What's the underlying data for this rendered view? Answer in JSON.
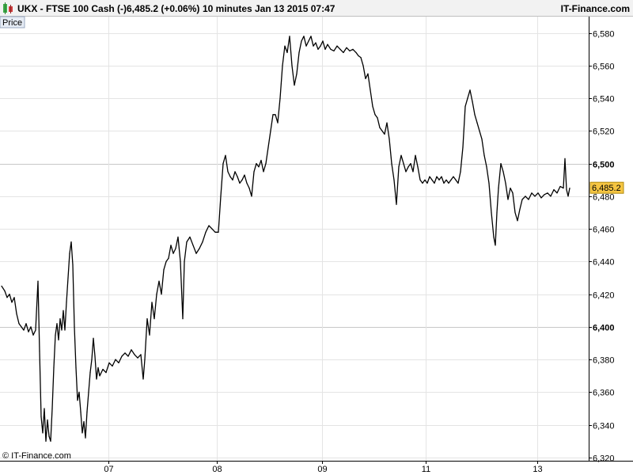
{
  "header": {
    "instrument": "UKX - FTSE 100 Cash (-)",
    "price_change": "6,485.2 (+0.06%)",
    "interval": "10 minutes",
    "datetime": "Jan 13 2015 07:47",
    "brand": "IT-Finance.com"
  },
  "panel_label": "Price",
  "watermark": "© IT-Finance.com",
  "last_price_label": "6,485.2",
  "colors": {
    "line": "#000000",
    "last_price_bg": "#f5c542",
    "icon_green": "#3fae49",
    "icon_red": "#d23c3c"
  },
  "chart_data": {
    "type": "line",
    "title": "UKX - FTSE 100 Cash (-)",
    "xlabel": "",
    "ylabel": "",
    "ylim": [
      6318,
      6590
    ],
    "grid": true,
    "x_ticks": [
      {
        "label": "07",
        "t": 137
      },
      {
        "label": "08",
        "t": 274
      },
      {
        "label": "09",
        "t": 407
      },
      {
        "label": "11",
        "t": 538
      },
      {
        "label": "13",
        "t": 679
      }
    ],
    "y_ticks": [
      {
        "label": "6,320",
        "v": 6320,
        "bold": false
      },
      {
        "label": "6,340",
        "v": 6340,
        "bold": false
      },
      {
        "label": "6,360",
        "v": 6360,
        "bold": false
      },
      {
        "label": "6,380",
        "v": 6380,
        "bold": false
      },
      {
        "label": "6,400",
        "v": 6400,
        "bold": true
      },
      {
        "label": "6,420",
        "v": 6420,
        "bold": false
      },
      {
        "label": "6,440",
        "v": 6440,
        "bold": false
      },
      {
        "label": "6,460",
        "v": 6460,
        "bold": false
      },
      {
        "label": "6,480",
        "v": 6480,
        "bold": false
      },
      {
        "label": "6,500",
        "v": 6500,
        "bold": true
      },
      {
        "label": "6,520",
        "v": 6520,
        "bold": false
      },
      {
        "label": "6,540",
        "v": 6540,
        "bold": false
      },
      {
        "label": "6,560",
        "v": 6560,
        "bold": false
      },
      {
        "label": "6,580",
        "v": 6580,
        "bold": false
      }
    ],
    "last_value": 6485.2,
    "series": [
      {
        "values": [
          [
            2,
            6425
          ],
          [
            6,
            6422
          ],
          [
            9,
            6418
          ],
          [
            12,
            6420
          ],
          [
            15,
            6415
          ],
          [
            18,
            6418
          ],
          [
            21,
            6408
          ],
          [
            24,
            6402
          ],
          [
            27,
            6400
          ],
          [
            30,
            6398
          ],
          [
            33,
            6402
          ],
          [
            36,
            6397
          ],
          [
            39,
            6400
          ],
          [
            42,
            6395
          ],
          [
            45,
            6398
          ],
          [
            48,
            6428
          ],
          [
            50,
            6385
          ],
          [
            52,
            6345
          ],
          [
            54,
            6335
          ],
          [
            56,
            6350
          ],
          [
            58,
            6330
          ],
          [
            60,
            6343
          ],
          [
            62,
            6333
          ],
          [
            64,
            6330
          ],
          [
            66,
            6350
          ],
          [
            68,
            6375
          ],
          [
            70,
            6395
          ],
          [
            72,
            6402
          ],
          [
            74,
            6392
          ],
          [
            76,
            6405
          ],
          [
            78,
            6398
          ],
          [
            80,
            6410
          ],
          [
            82,
            6398
          ],
          [
            84,
            6415
          ],
          [
            86,
            6430
          ],
          [
            88,
            6445
          ],
          [
            90,
            6452
          ],
          [
            92,
            6438
          ],
          [
            94,
            6400
          ],
          [
            96,
            6375
          ],
          [
            98,
            6355
          ],
          [
            100,
            6360
          ],
          [
            102,
            6348
          ],
          [
            104,
            6335
          ],
          [
            106,
            6342
          ],
          [
            108,
            6332
          ],
          [
            110,
            6348
          ],
          [
            112,
            6360
          ],
          [
            114,
            6372
          ],
          [
            116,
            6380
          ],
          [
            118,
            6393
          ],
          [
            120,
            6382
          ],
          [
            122,
            6368
          ],
          [
            124,
            6375
          ],
          [
            126,
            6370
          ],
          [
            130,
            6374
          ],
          [
            134,
            6372
          ],
          [
            138,
            6378
          ],
          [
            142,
            6376
          ],
          [
            146,
            6380
          ],
          [
            150,
            6378
          ],
          [
            154,
            6382
          ],
          [
            158,
            6384
          ],
          [
            162,
            6382
          ],
          [
            166,
            6386
          ],
          [
            170,
            6383
          ],
          [
            174,
            6381
          ],
          [
            178,
            6383
          ],
          [
            181,
            6368
          ],
          [
            183,
            6380
          ],
          [
            186,
            6405
          ],
          [
            189,
            6395
          ],
          [
            192,
            6415
          ],
          [
            195,
            6405
          ],
          [
            198,
            6420
          ],
          [
            201,
            6428
          ],
          [
            204,
            6420
          ],
          [
            207,
            6435
          ],
          [
            210,
            6440
          ],
          [
            213,
            6442
          ],
          [
            216,
            6450
          ],
          [
            219,
            6445
          ],
          [
            222,
            6448
          ],
          [
            225,
            6455
          ],
          [
            228,
            6440
          ],
          [
            231,
            6405
          ],
          [
            233,
            6440
          ],
          [
            236,
            6452
          ],
          [
            240,
            6455
          ],
          [
            244,
            6450
          ],
          [
            248,
            6445
          ],
          [
            252,
            6448
          ],
          [
            256,
            6452
          ],
          [
            260,
            6458
          ],
          [
            264,
            6462
          ],
          [
            268,
            6460
          ],
          [
            272,
            6458
          ],
          [
            276,
            6458
          ],
          [
            279,
            6480
          ],
          [
            282,
            6500
          ],
          [
            285,
            6505
          ],
          [
            288,
            6495
          ],
          [
            291,
            6492
          ],
          [
            294,
            6490
          ],
          [
            297,
            6495
          ],
          [
            300,
            6492
          ],
          [
            303,
            6488
          ],
          [
            306,
            6490
          ],
          [
            309,
            6493
          ],
          [
            312,
            6488
          ],
          [
            315,
            6485
          ],
          [
            318,
            6480
          ],
          [
            321,
            6495
          ],
          [
            324,
            6500
          ],
          [
            327,
            6498
          ],
          [
            330,
            6502
          ],
          [
            333,
            6495
          ],
          [
            336,
            6500
          ],
          [
            339,
            6510
          ],
          [
            342,
            6520
          ],
          [
            345,
            6530
          ],
          [
            348,
            6530
          ],
          [
            351,
            6525
          ],
          [
            354,
            6540
          ],
          [
            357,
            6560
          ],
          [
            360,
            6572
          ],
          [
            363,
            6568
          ],
          [
            366,
            6578
          ],
          [
            369,
            6560
          ],
          [
            372,
            6548
          ],
          [
            375,
            6555
          ],
          [
            378,
            6568
          ],
          [
            381,
            6575
          ],
          [
            384,
            6578
          ],
          [
            387,
            6572
          ],
          [
            390,
            6575
          ],
          [
            393,
            6578
          ],
          [
            396,
            6572
          ],
          [
            399,
            6574
          ],
          [
            402,
            6570
          ],
          [
            405,
            6572
          ],
          [
            408,
            6575
          ],
          [
            411,
            6570
          ],
          [
            414,
            6573
          ],
          [
            418,
            6570
          ],
          [
            422,
            6569
          ],
          [
            426,
            6572
          ],
          [
            430,
            6570
          ],
          [
            434,
            6568
          ],
          [
            438,
            6571
          ],
          [
            442,
            6569
          ],
          [
            446,
            6570
          ],
          [
            450,
            6568
          ],
          [
            453,
            6566
          ],
          [
            456,
            6565
          ],
          [
            459,
            6560
          ],
          [
            462,
            6552
          ],
          [
            465,
            6555
          ],
          [
            468,
            6545
          ],
          [
            471,
            6535
          ],
          [
            474,
            6530
          ],
          [
            477,
            6528
          ],
          [
            480,
            6522
          ],
          [
            483,
            6520
          ],
          [
            486,
            6518
          ],
          [
            489,
            6525
          ],
          [
            492,
            6515
          ],
          [
            495,
            6500
          ],
          [
            498,
            6490
          ],
          [
            501,
            6475
          ],
          [
            504,
            6498
          ],
          [
            507,
            6505
          ],
          [
            510,
            6500
          ],
          [
            513,
            6495
          ],
          [
            516,
            6498
          ],
          [
            519,
            6500
          ],
          [
            522,
            6495
          ],
          [
            525,
            6505
          ],
          [
            528,
            6498
          ],
          [
            531,
            6490
          ],
          [
            534,
            6488
          ],
          [
            537,
            6490
          ],
          [
            540,
            6488
          ],
          [
            543,
            6492
          ],
          [
            546,
            6490
          ],
          [
            549,
            6488
          ],
          [
            552,
            6492
          ],
          [
            555,
            6490
          ],
          [
            558,
            6492
          ],
          [
            561,
            6488
          ],
          [
            564,
            6490
          ],
          [
            567,
            6488
          ],
          [
            570,
            6490
          ],
          [
            573,
            6492
          ],
          [
            576,
            6490
          ],
          [
            579,
            6488
          ],
          [
            582,
            6495
          ],
          [
            585,
            6510
          ],
          [
            588,
            6535
          ],
          [
            591,
            6540
          ],
          [
            594,
            6545
          ],
          [
            597,
            6538
          ],
          [
            600,
            6530
          ],
          [
            603,
            6525
          ],
          [
            606,
            6520
          ],
          [
            609,
            6515
          ],
          [
            612,
            6505
          ],
          [
            615,
            6498
          ],
          [
            618,
            6488
          ],
          [
            621,
            6470
          ],
          [
            624,
            6455
          ],
          [
            626,
            6450
          ],
          [
            628,
            6470
          ],
          [
            630,
            6485
          ],
          [
            633,
            6500
          ],
          [
            636,
            6495
          ],
          [
            639,
            6488
          ],
          [
            642,
            6478
          ],
          [
            645,
            6485
          ],
          [
            648,
            6482
          ],
          [
            651,
            6470
          ],
          [
            654,
            6465
          ],
          [
            657,
            6472
          ],
          [
            660,
            6478
          ],
          [
            664,
            6480
          ],
          [
            668,
            6478
          ],
          [
            672,
            6482
          ],
          [
            676,
            6480
          ],
          [
            680,
            6482
          ],
          [
            684,
            6479
          ],
          [
            688,
            6481
          ],
          [
            692,
            6482
          ],
          [
            696,
            6480
          ],
          [
            700,
            6484
          ],
          [
            704,
            6482
          ],
          [
            708,
            6486
          ],
          [
            712,
            6485
          ],
          [
            714,
            6503
          ],
          [
            716,
            6484
          ],
          [
            718,
            6480
          ],
          [
            720,
            6485
          ]
        ]
      }
    ]
  }
}
